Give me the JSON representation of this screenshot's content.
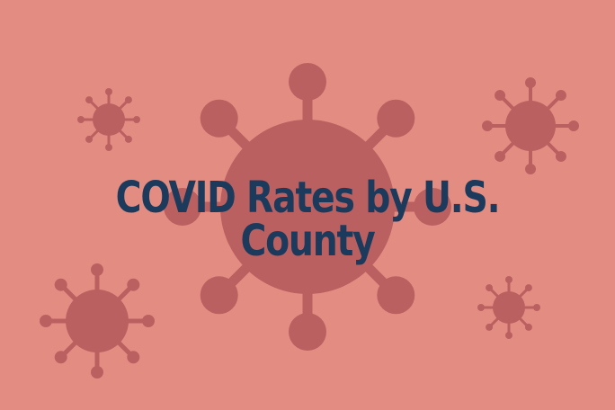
{
  "banner": {
    "title": "COVID Rates by U.S. County",
    "colors": {
      "background": "#e38d82",
      "virus": "#bb6060",
      "title": "#1c3a5c"
    },
    "icons": [
      "large-virus-icon",
      "small-virus-icon"
    ]
  }
}
